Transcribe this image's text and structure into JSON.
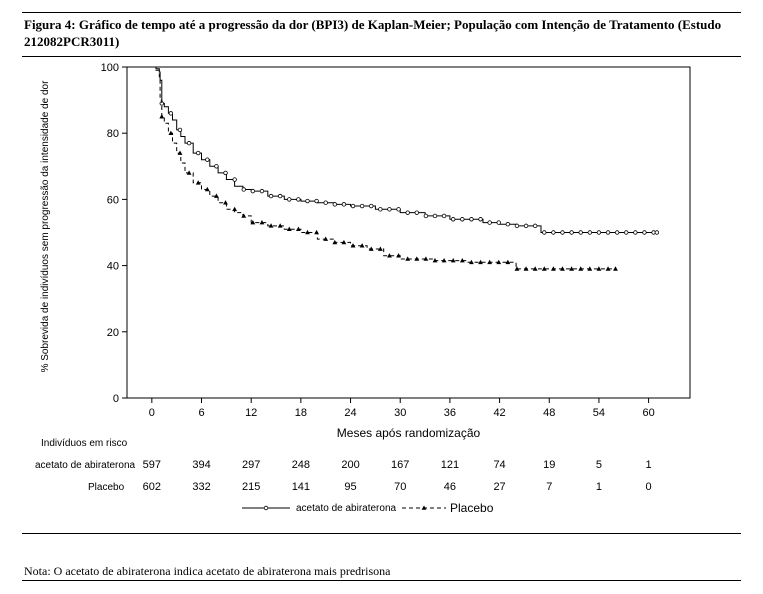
{
  "caption": "Figura 4: Gráfico de tempo até a progressão da dor (BPI3) de Kaplan-Meier; População com Intenção de Tratamento (Estudo 212082PCR3011)",
  "note": "Nota: O acetato de abiraterona indica acetato de abiraterona mais predrisona",
  "chart_data": {
    "type": "line",
    "subtype": "kaplan-meier step",
    "xlabel": "Meses após randomização",
    "ylabel": "% Sobrevida de indivíduos sem progressão da intensidade de dor",
    "xlim": [
      -3,
      65
    ],
    "ylim": [
      0,
      100
    ],
    "xticks": [
      0,
      6,
      12,
      18,
      24,
      30,
      36,
      42,
      48,
      54,
      60
    ],
    "yticks": [
      0,
      20,
      40,
      60,
      80,
      100
    ],
    "grid": false,
    "legend_position": "bottom",
    "series": [
      {
        "name": "acetato de abiraterona",
        "line_style": "solid",
        "marker": "open-circle",
        "color": "#000000",
        "x": [
          0,
          0.5,
          0.9,
          1.0,
          1.2,
          1.5,
          2.0,
          2.5,
          3.0,
          3.5,
          4.0,
          5.0,
          6.0,
          7.0,
          8.0,
          9.0,
          10.0,
          11.0,
          12.0,
          14.0,
          16.0,
          18.0,
          20.0,
          22.0,
          24.0,
          27.0,
          30.0,
          33.0,
          36.0,
          40.0,
          42.0,
          44.0,
          46.0,
          47.0,
          50.0,
          55.0,
          60.0,
          61.0
        ],
        "y": [
          100,
          99.5,
          98.5,
          96,
          89,
          88,
          86,
          84,
          81,
          79,
          77,
          74,
          72,
          70,
          68,
          66,
          64,
          63,
          62.5,
          61,
          60,
          59.5,
          59,
          58.5,
          58,
          57,
          56,
          55,
          54,
          53,
          52.5,
          52,
          52,
          50,
          50,
          50,
          50,
          50
        ]
      },
      {
        "name": "Placebo",
        "line_style": "dashed",
        "marker": "filled-triangle",
        "color": "#000000",
        "x": [
          0,
          0.5,
          0.9,
          1.0,
          1.2,
          1.5,
          2.0,
          2.5,
          3.0,
          3.5,
          4.0,
          5.0,
          6.0,
          7.0,
          8.0,
          9.0,
          10.0,
          11.0,
          12.0,
          14.0,
          16.0,
          18.0,
          20.0,
          22.0,
          24.0,
          26.0,
          28.0,
          30.0,
          34.0,
          38.0,
          42.0,
          44.0,
          46.0,
          50.0,
          56.0
        ],
        "y": [
          100,
          99,
          97,
          90,
          85,
          83,
          80,
          77,
          74,
          71,
          68,
          65,
          63,
          61,
          59,
          57,
          56,
          55,
          53,
          52,
          51,
          50,
          48,
          47,
          46,
          45,
          43,
          42,
          41.5,
          41,
          41,
          39,
          39,
          39,
          39
        ]
      }
    ],
    "risk_table": {
      "title": "Indivíduos em risco",
      "timepoints": [
        0,
        6,
        12,
        18,
        24,
        30,
        36,
        42,
        48,
        54,
        60
      ],
      "rows": [
        {
          "label": "acetato de abiraterona",
          "values": [
            597,
            394,
            297,
            248,
            200,
            167,
            121,
            74,
            19,
            5,
            1
          ]
        },
        {
          "label": "Placebo",
          "values": [
            602,
            332,
            215,
            141,
            95,
            70,
            46,
            27,
            7,
            1,
            0
          ]
        }
      ]
    }
  }
}
